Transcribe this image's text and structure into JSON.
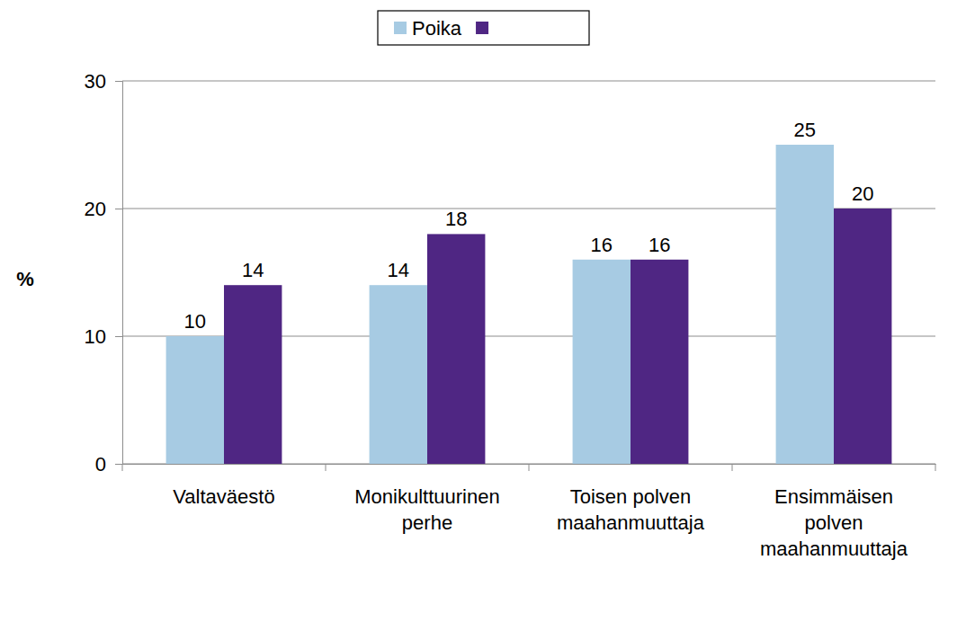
{
  "chart_data": {
    "type": "bar",
    "y_label": "%",
    "categories": [
      "Valtaväestö",
      "Monikulttuurinen perhe",
      "Toisen polven maahanmuuttaja",
      "Ensimmäisen polven maahanmuuttaja"
    ],
    "series": [
      {
        "name": "Poika",
        "color": "#a7cbe3",
        "values": [
          10,
          14,
          16,
          25
        ]
      },
      {
        "name": null,
        "color": "#4f2683",
        "values": [
          14,
          18,
          16,
          20
        ]
      }
    ],
    "ylim": [
      0,
      30
    ],
    "yticks": [
      0,
      10,
      20,
      30
    ],
    "grid": true,
    "legend": "top",
    "data_labels": true
  }
}
